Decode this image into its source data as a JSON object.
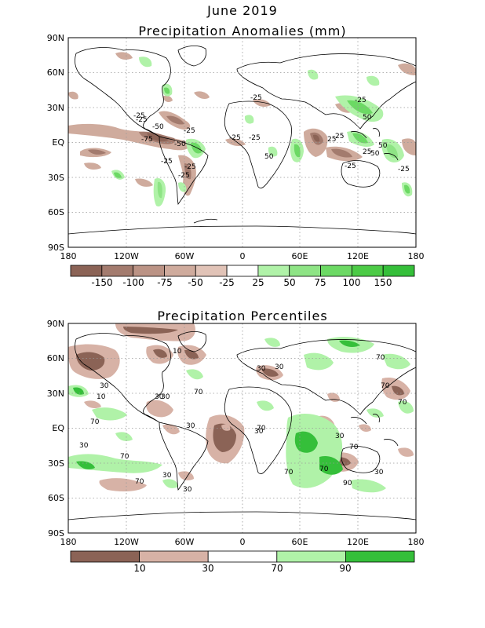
{
  "header": {
    "month": "June 2019",
    "title1": "Precipitation Anomalies (mm)",
    "title2": "Precipitation Percentiles"
  },
  "axes": {
    "lat_labels": [
      "90N",
      "60N",
      "30N",
      "EQ",
      "30S",
      "60S",
      "90S"
    ],
    "lon_labels": [
      "180",
      "120W",
      "60W",
      "0",
      "60E",
      "120E",
      "180"
    ]
  },
  "anomaly_map": {
    "colorbar": {
      "labels": [
        "-150",
        "-100",
        "-75",
        "-50",
        "-25",
        "25",
        "50",
        "75",
        "100",
        "150"
      ],
      "colors": [
        "#8b6356",
        "#a37b6e",
        "#bb9385",
        "#cfab9d",
        "#e1c3b7",
        "#ffffff",
        "#b0f2a8",
        "#8ee485",
        "#6cd964",
        "#4ccb46",
        "#35bf3a"
      ]
    },
    "contour_labels": [
      "-25",
      "-25",
      "-50",
      "-25",
      "-75",
      "-50",
      "-25",
      "-25",
      "50",
      "-25",
      "-25",
      "-25",
      "25",
      "25",
      "50",
      "50",
      "-25",
      "-25",
      "25",
      "50",
      "-25",
      "-25"
    ]
  },
  "percentile_map": {
    "colorbar": {
      "labels": [
        "10",
        "30",
        "70",
        "90"
      ],
      "colors": [
        "#8b6356",
        "#d7b2a6",
        "#ffffff",
        "#b0f2a8",
        "#35bf3a"
      ]
    },
    "contour_labels": [
      "10",
      "30",
      "30",
      "70",
      "70",
      "30",
      "30",
      "10",
      "70",
      "30",
      "70",
      "30",
      "70",
      "30",
      "70",
      "70",
      "70",
      "30",
      "30",
      "70",
      "30",
      "90",
      "30",
      "70",
      "70",
      "30"
    ]
  },
  "colors": {
    "dry": "#a37b6e",
    "wet": "#6cd964",
    "grid": "#999999"
  }
}
